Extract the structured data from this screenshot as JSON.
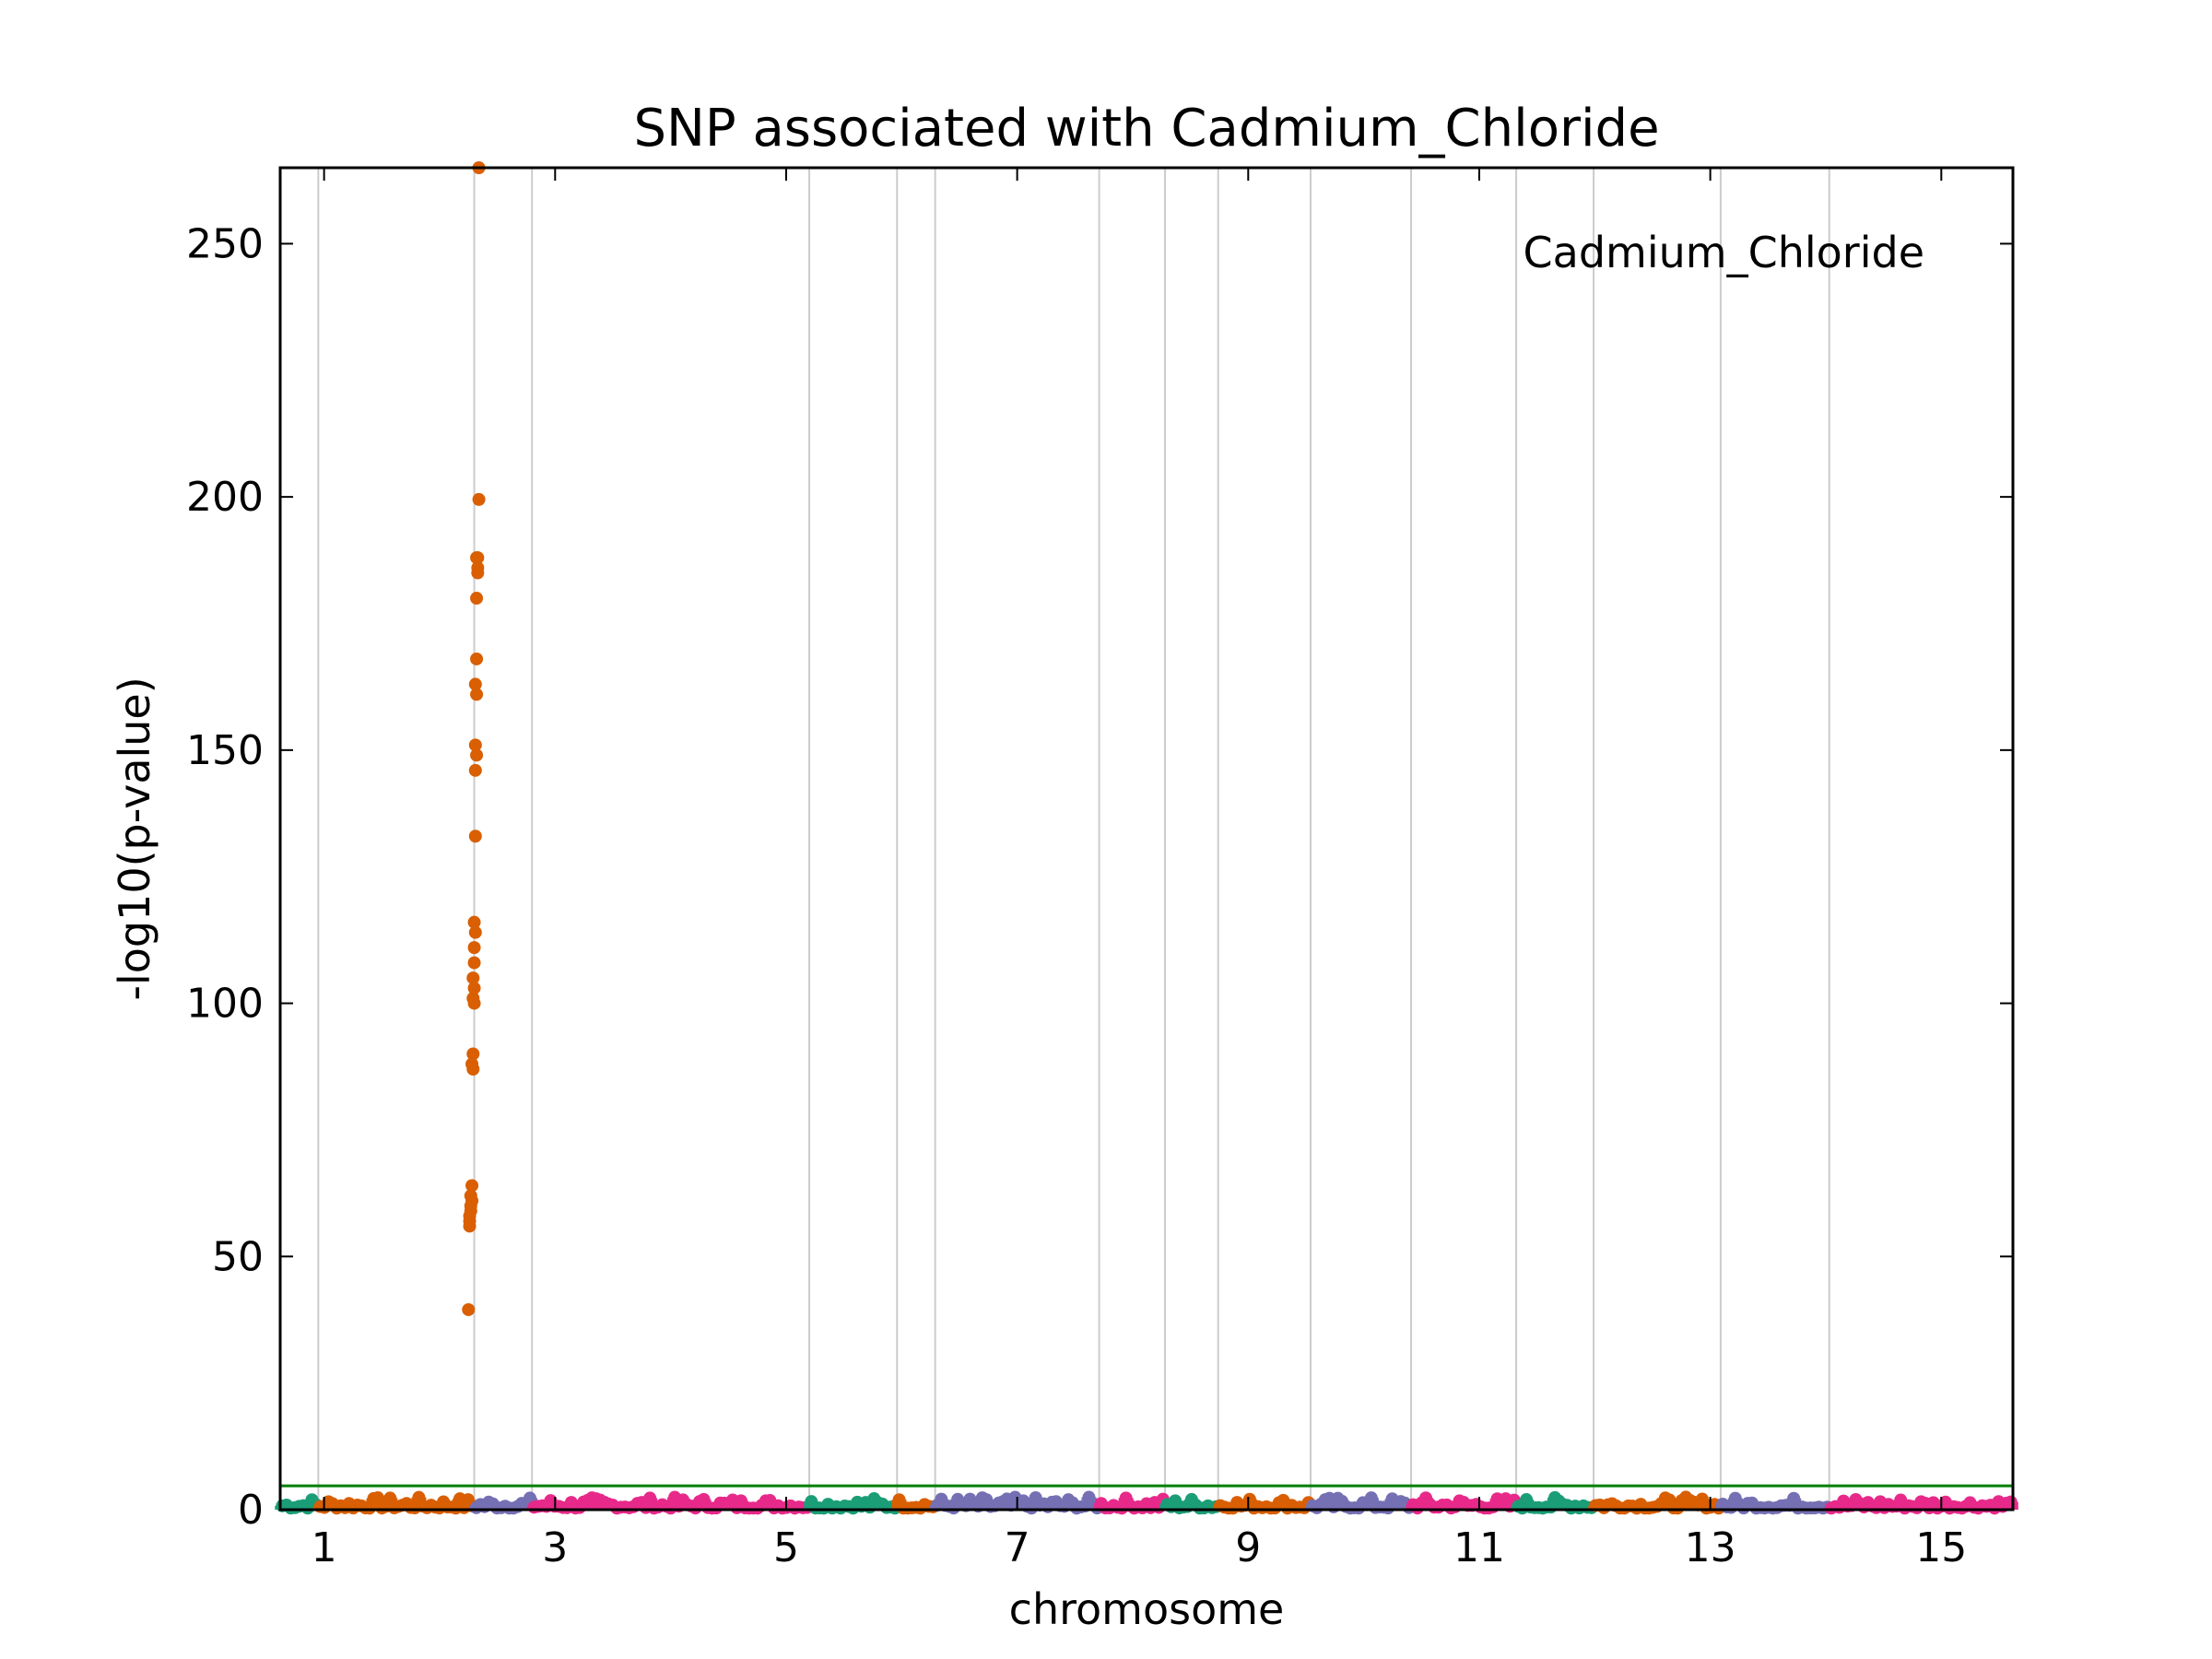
{
  "chart_data": {
    "type": "scatter",
    "title": "SNP associated with Cadmium_Chloride",
    "xlabel": "chromosome",
    "ylabel": "-log10(p-value)",
    "annotation": "Cadmium_Chloride",
    "xlim": [
      0.62,
      15.62
    ],
    "ylim": [
      0,
      265
    ],
    "x_ticks": [
      1,
      3,
      5,
      7,
      9,
      11,
      13,
      15
    ],
    "y_ticks": [
      0,
      50,
      100,
      150,
      200,
      250
    ],
    "threshold": 4.7,
    "grid": "vertical chromosome boundaries",
    "chromosome_boundaries": [
      0.95,
      2.3,
      2.8,
      5.2,
      5.96,
      6.29,
      7.71,
      8.28,
      8.74,
      9.54,
      10.41,
      11.32,
      11.99,
      13.09,
      14.03
    ],
    "colors": {
      "green": "#1b9e77",
      "orange": "#d95f02",
      "purple": "#7570b3",
      "pink": "#e7298a",
      "threshold": "#008000",
      "grid": "#cccccc"
    },
    "series": [
      {
        "color": "orange",
        "x": [
          2.25,
          2.26,
          2.26,
          2.26,
          2.27,
          2.27,
          2.28,
          2.27,
          2.28,
          2.29,
          2.28,
          2.29,
          2.3,
          2.29,
          2.3,
          2.29,
          2.3,
          2.3,
          2.31,
          2.3,
          2.31,
          2.31,
          2.32,
          2.31,
          2.32,
          2.31,
          2.32,
          2.32,
          2.33,
          2.34
        ],
        "y": [
          39.5,
          56,
          57,
          58,
          59,
          60,
          61,
          62,
          64,
          87,
          88,
          90,
          100,
          101,
          103,
          105,
          108,
          111,
          114,
          116,
          133,
          146,
          149,
          151,
          161,
          163,
          168,
          180,
          185,
          265
        ]
      },
      {
        "color": "orange",
        "x": [
          2.32,
          2.33,
          2.33,
          2.34
        ],
        "y": [
          188,
          186,
          188,
          199.5
        ]
      }
    ]
  }
}
